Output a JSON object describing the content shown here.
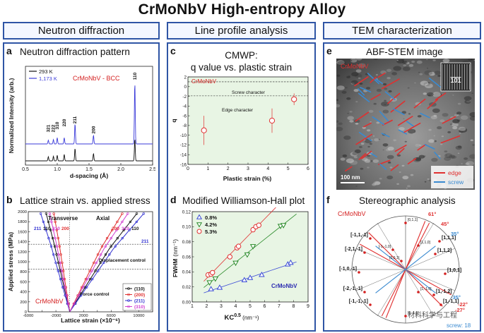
{
  "title": "CrMoNbV High-entropy Alloy",
  "columns": [
    {
      "header": "Neutron diffraction"
    },
    {
      "header": "Line profile analysis"
    },
    {
      "header": "TEM characterization"
    }
  ],
  "panels": {
    "a": {
      "letter": "a",
      "title": "Neutron diffraction pattern",
      "material": "CrMoNbV - BCC",
      "legend": [
        "293 K",
        "1,173 K"
      ],
      "xlabel": "d-spacing (Å)",
      "ylabel": "Normalized Intensity (arb.)",
      "xticks": [
        "0.5",
        "1.0",
        "1.5",
        "2.0",
        "2.5"
      ],
      "peaks": [
        "321",
        "222",
        "310",
        "220",
        "211",
        "200",
        "110"
      ]
    },
    "b": {
      "letter": "b",
      "title": "Lattice strain vs. applied stress",
      "material": "CrMoNbV",
      "xlabel": "Lattice strain (×10⁻⁶)",
      "ylabel": "Applied stress (MPa)",
      "transverse": "Transverse",
      "axial": "Axial",
      "displacement": "Displacement control",
      "force": "Force control",
      "legend": [
        "(110)",
        "(200)",
        "(211)",
        "(310)"
      ],
      "top_labels_left": [
        "211",
        "110",
        "310",
        "200"
      ],
      "top_labels_right": [
        "200",
        "310",
        "110",
        "211"
      ],
      "xticks": [
        "-6000",
        "-4000",
        "-2000",
        "0",
        "2000",
        "4000",
        "6000",
        "8000",
        "10000",
        "12000"
      ],
      "yticks": [
        "0",
        "200",
        "400",
        "600",
        "800",
        "1000",
        "1200",
        "1400",
        "1600",
        "1800",
        "2000"
      ]
    },
    "c": {
      "letter": "c",
      "title_line1": "CMWP:",
      "title_line2": "q value vs. plastic strain",
      "material": "CrMoNbV",
      "screw": "Screw character",
      "edge": "Edge character",
      "xlabel": "Plastic strain (%)",
      "ylabel": "q",
      "xticks": [
        "0",
        "1",
        "2",
        "3",
        "4",
        "5",
        "6"
      ],
      "yticks": [
        "2",
        "0",
        "-2",
        "-4",
        "-6",
        "-8",
        "-10",
        "-12",
        "-14",
        "-16"
      ]
    },
    "d": {
      "letter": "d",
      "title": "Modified Williamson-Hall plot",
      "material": "CrMoNbV",
      "xlabel": "KC",
      "xlabel_sup": "0.5",
      "xlabel_unit": " (nm⁻¹)",
      "ylabel": "FWHM",
      "ylabel_unit": "(nm⁻¹)",
      "xticks": [
        "1",
        "2",
        "3",
        "4",
        "5",
        "6",
        "7",
        "8",
        "9"
      ],
      "yticks": [
        "0.00",
        "0.02",
        "0.04",
        "0.06",
        "0.08",
        "0.10",
        "0.12"
      ]
    },
    "e": {
      "letter": "e",
      "title": "ABF-STEM image",
      "material": "CrMoNbV",
      "zone": "101",
      "scale": "100 nm",
      "legend": [
        "edge",
        "screw"
      ]
    },
    "f": {
      "letter": "f",
      "title": "Stereographic analysis",
      "material": "CrMoNbV",
      "poles": [
        "[-1,1,-1]",
        "[-2,1,-1]",
        "[-1,0,-1]",
        "[-2,-1,-1]",
        "[-1,-1,-1]",
        "[1,1,1]",
        "[1,1,2]",
        "[1,0,1]",
        "[1,-1,2]",
        "[1,-1,1]",
        "[-1,-1,0]",
        "[1,-1,0]",
        "[1,1,0]",
        "[0,1,1]",
        "[0,-1,1]",
        "[0,0,1]"
      ],
      "angles": [
        "61°",
        "45°",
        "35°",
        "-22°",
        "-27°",
        "-35°"
      ],
      "screw_count": "screw: 18",
      "watermark": "材料科学与工程"
    }
  },
  "chart_data": [
    {
      "panel": "a",
      "type": "line",
      "title": "Neutron diffraction pattern",
      "xlabel": "d-spacing (Å)",
      "ylabel": "Normalized Intensity (arb.)",
      "xlim": [
        0.5,
        2.5
      ],
      "series": [
        {
          "name": "293 K",
          "color": "#111111",
          "peaks": [
            [
              0.86,
              0.09
            ],
            [
              0.94,
              0.1
            ],
            [
              1.0,
              0.12
            ],
            [
              1.11,
              0.14
            ],
            [
              1.28,
              0.27
            ],
            [
              1.57,
              0.16
            ],
            [
              2.22,
              0.48
            ]
          ]
        },
        {
          "name": "1,173 K",
          "color": "#3b3bd9",
          "peaks": [
            [
              0.86,
              0.06
            ],
            [
              0.94,
              0.07
            ],
            [
              1.0,
              0.1
            ],
            [
              1.11,
              0.1
            ],
            [
              1.28,
              0.33
            ],
            [
              1.57,
              0.14
            ],
            [
              2.22,
              1.0
            ]
          ]
        }
      ]
    },
    {
      "panel": "b",
      "type": "line",
      "xlabel": "Lattice strain (×10⁻⁶)",
      "ylabel": "Applied stress (MPa)",
      "xlim": [
        -6000,
        12000
      ],
      "ylim": [
        0,
        2000
      ],
      "series": [
        {
          "name": "(110)",
          "color": "#111111",
          "transverse_end": [
            -3400,
            1960
          ],
          "axial_end": [
            9700,
            1960
          ]
        },
        {
          "name": "(200)",
          "color": "#e03030",
          "transverse_end": [
            -2300,
            1960
          ],
          "axial_end": [
            7600,
            1960
          ]
        },
        {
          "name": "(211)",
          "color": "#3030d0",
          "transverse_end": [
            -4200,
            1960
          ],
          "axial_end": [
            10700,
            1960
          ]
        },
        {
          "name": "(310)",
          "color": "#d040d0",
          "transverse_end": [
            -2900,
            1960
          ],
          "axial_end": [
            8400,
            1960
          ]
        }
      ]
    },
    {
      "panel": "c",
      "type": "scatter",
      "xlabel": "Plastic strain (%)",
      "ylabel": "q",
      "xlim": [
        0,
        6
      ],
      "ylim": [
        -16,
        2
      ],
      "points": [
        {
          "x": 0.8,
          "y": -9.0,
          "err": 3.0
        },
        {
          "x": 4.2,
          "y": -7.0,
          "err": 2.5
        },
        {
          "x": 5.3,
          "y": -2.6,
          "err": 1.2
        }
      ],
      "lines": [
        {
          "y": 1.0
        },
        {
          "y": -1.9
        }
      ]
    },
    {
      "panel": "d",
      "type": "scatter",
      "xlabel": "KC^0.5 (nm⁻¹)",
      "ylabel": "FWHM (nm⁻¹)",
      "xlim": [
        1,
        9
      ],
      "ylim": [
        0.0,
        0.12
      ],
      "series": [
        {
          "name": "0.8%",
          "marker": "triangle-up",
          "color": "#3b4bd6",
          "x": [
            2.3,
            2.9,
            4.6,
            5.0,
            5.8,
            7.6,
            7.8
          ],
          "y": [
            0.017,
            0.019,
            0.029,
            0.032,
            0.036,
            0.05,
            0.052
          ]
        },
        {
          "name": "4.2%",
          "marker": "triangle-down",
          "color": "#2a8a2a",
          "x": [
            2.2,
            2.6,
            4.0,
            4.8,
            5.2,
            7.1,
            7.3
          ],
          "y": [
            0.026,
            0.031,
            0.052,
            0.063,
            0.074,
            0.101,
            0.102
          ]
        },
        {
          "name": "5.3%",
          "marker": "circle",
          "color": "#e03030",
          "x": [
            2.1,
            2.3,
            2.4,
            3.6,
            4.1,
            4.2,
            5.2,
            5.4,
            5.6
          ],
          "y": [
            0.036,
            0.037,
            0.039,
            0.06,
            0.072,
            0.074,
            0.096,
            0.1,
            0.102
          ]
        }
      ]
    }
  ]
}
